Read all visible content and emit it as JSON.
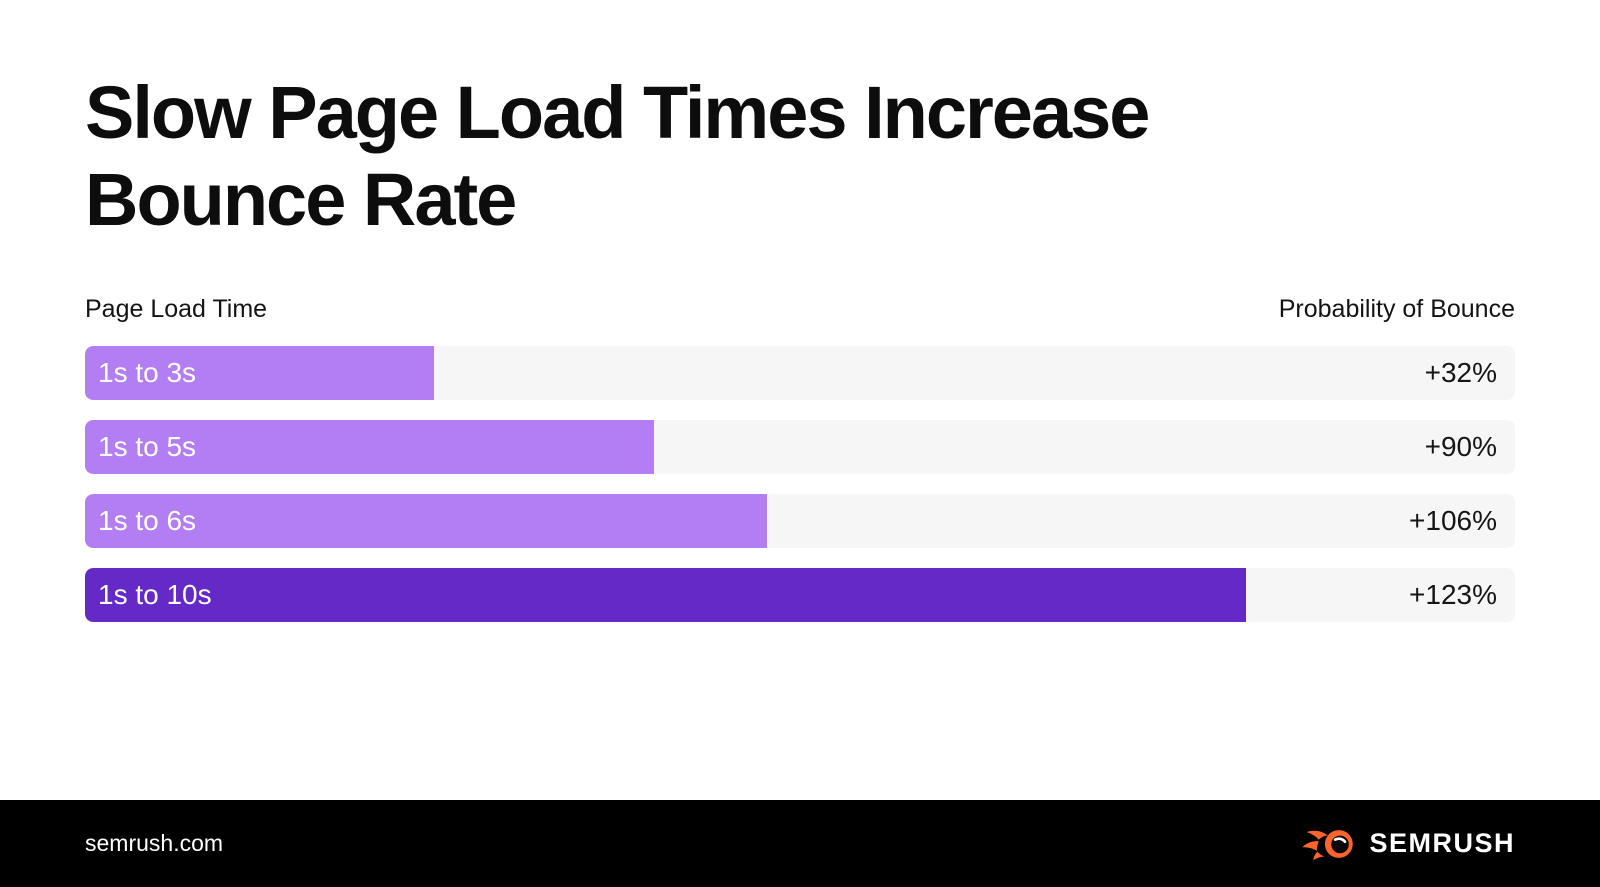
{
  "title": {
    "line1": "Slow Page Load Times Increase",
    "line2": "Bounce Rate"
  },
  "header": {
    "left_label": "Page Load Time",
    "right_label": "Probability of Bounce"
  },
  "chart_data": {
    "type": "bar",
    "orientation": "horizontal",
    "title": "Slow Page Load Times Increase Bounce Rate",
    "category_axis_label": "Page Load Time",
    "value_axis_label": "Probability of Bounce",
    "categories": [
      "1s to 3s",
      "1s to 5s",
      "1s to 6s",
      "1s to 10s"
    ],
    "values": [
      32,
      90,
      106,
      123
    ],
    "value_labels": [
      "+32%",
      "+90%",
      "+106%",
      "+123%"
    ],
    "load_time_seconds": [
      3,
      5,
      6,
      10
    ],
    "bar_width_pct": [
      24.4,
      39.8,
      47.7,
      81.2
    ],
    "bar_colors": [
      "#b37ef3",
      "#b37ef3",
      "#b37ef3",
      "#6529c8"
    ],
    "track_color": "#f6f6f6",
    "grid": false,
    "legend": "none"
  },
  "footer": {
    "site": "semrush.com",
    "brand": "SEMRUSH"
  },
  "colors": {
    "background": "#ffffff",
    "title_text": "#0d0d0d",
    "bar_light_purple": "#b37ef3",
    "bar_dark_purple": "#6529c8",
    "track": "#f6f6f6",
    "footer_bg": "#000000",
    "footer_text": "#ffffff",
    "brand_orange": "#ff642d"
  }
}
